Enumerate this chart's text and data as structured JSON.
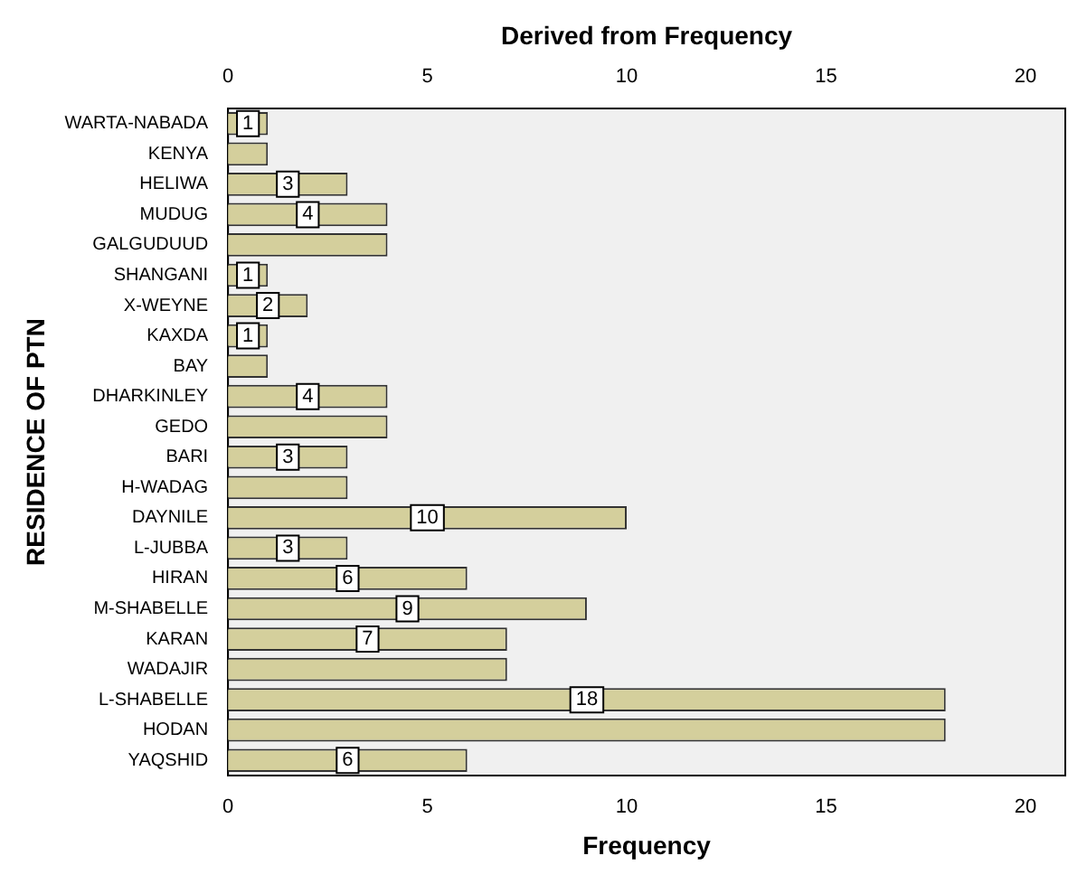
{
  "chart_data": {
    "type": "bar",
    "orientation": "horizontal",
    "xlabel": "Frequency",
    "x2label": "Derived from Frequency",
    "ylabel": "RESIDENCE OF PTN",
    "categories": [
      "WARTA-NABADA",
      "KENYA",
      "HELIWA",
      "MUDUG",
      "GALGUDUUD",
      "SHANGANI",
      "X-WEYNE",
      "KAXDA",
      "BAY",
      "DHARKINLEY",
      "GEDO",
      "BARI",
      "H-WADAG",
      "DAYNILE",
      "L-JUBBA",
      "HIRAN",
      "M-SHABELLE",
      "KARAN",
      "WADAJIR",
      "L-SHABELLE",
      "HODAN",
      "YAQSHID"
    ],
    "values": [
      1,
      1,
      3,
      4,
      4,
      1,
      2,
      1,
      1,
      4,
      4,
      3,
      3,
      10,
      3,
      6,
      9,
      7,
      7,
      18,
      18,
      6
    ],
    "value_labels": [
      "1",
      null,
      "3",
      "4",
      null,
      "1",
      "2",
      "1",
      null,
      "4",
      null,
      "3",
      null,
      "10",
      "3",
      "6",
      "9",
      "7",
      null,
      "18",
      null,
      "6"
    ],
    "color": "#d4cf9c",
    "xlim": [
      0,
      21
    ],
    "xticks": [
      0,
      5,
      10,
      15,
      20
    ],
    "x2lim": [
      0,
      21
    ],
    "x2ticks": [
      0,
      5,
      10,
      15,
      20
    ],
    "grid": false,
    "legend": false
  }
}
